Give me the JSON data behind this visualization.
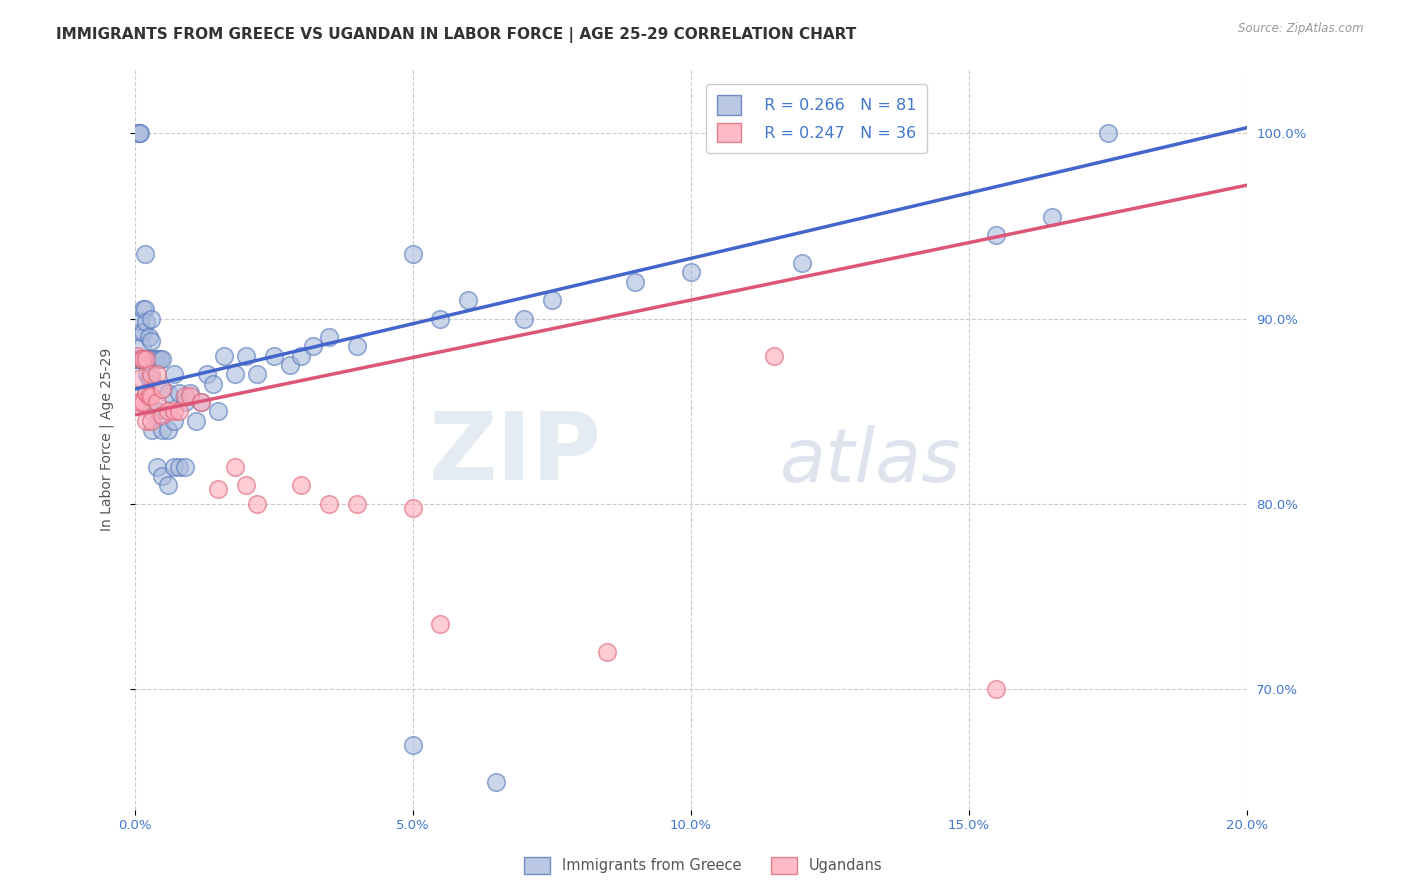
{
  "title": "IMMIGRANTS FROM GREECE VS UGANDAN IN LABOR FORCE | AGE 25-29 CORRELATION CHART",
  "source": "Source: ZipAtlas.com",
  "ylabel": "In Labor Force | Age 25-29",
  "xlim": [
    0.0,
    0.2
  ],
  "ylim": [
    0.635,
    1.035
  ],
  "xticks": [
    0.0,
    0.05,
    0.1,
    0.15,
    0.2
  ],
  "xticklabels": [
    "0.0%",
    "5.0%",
    "10.0%",
    "15.0%",
    "20.0%"
  ],
  "yticks": [
    0.7,
    0.8,
    0.9,
    1.0
  ],
  "yticklabels": [
    "70.0%",
    "80.0%",
    "90.0%",
    "100.0%"
  ],
  "blue_fill": "#aabbdd",
  "pink_fill": "#ffaabb",
  "blue_edge": "#5577bb",
  "pink_edge": "#dd6677",
  "blue_line": "#4466cc",
  "pink_line": "#dd5577",
  "R_blue": 0.266,
  "N_blue": 81,
  "R_pink": 0.247,
  "N_pink": 36,
  "legend_labels": [
    "Immigrants from Greece",
    "Ugandans"
  ],
  "watermark_zip": "ZIP",
  "watermark_atlas": "atlas",
  "background_color": "#ffffff",
  "title_fontsize": 11,
  "axis_label_fontsize": 10,
  "tick_fontsize": 9.5,
  "blue_line_y0": 0.862,
  "blue_line_y1": 1.003,
  "pink_line_y0": 0.848,
  "pink_line_y1": 0.972,
  "blue_scatter_x": [
    0.0003,
    0.0005,
    0.0007,
    0.0008,
    0.0009,
    0.001,
    0.001,
    0.001,
    0.0012,
    0.0013,
    0.0014,
    0.0015,
    0.0015,
    0.0015,
    0.0016,
    0.0017,
    0.0018,
    0.0018,
    0.002,
    0.002,
    0.002,
    0.002,
    0.0022,
    0.0023,
    0.0024,
    0.0025,
    0.0025,
    0.003,
    0.003,
    0.003,
    0.003,
    0.003,
    0.0032,
    0.0035,
    0.004,
    0.004,
    0.004,
    0.0045,
    0.005,
    0.005,
    0.005,
    0.005,
    0.006,
    0.006,
    0.006,
    0.007,
    0.007,
    0.007,
    0.008,
    0.008,
    0.009,
    0.009,
    0.01,
    0.011,
    0.012,
    0.013,
    0.014,
    0.015,
    0.016,
    0.018,
    0.02,
    0.022,
    0.025,
    0.028,
    0.03,
    0.032,
    0.035,
    0.04,
    0.05,
    0.05,
    0.055,
    0.06,
    0.065,
    0.07,
    0.075,
    0.09,
    0.1,
    0.12,
    0.155,
    0.165,
    0.175
  ],
  "blue_scatter_y": [
    0.878,
    0.878,
    1.0,
    1.0,
    1.0,
    0.878,
    0.893,
    0.899,
    0.878,
    0.878,
    0.885,
    0.878,
    0.893,
    0.905,
    0.878,
    0.878,
    0.905,
    0.935,
    0.86,
    0.878,
    0.878,
    0.898,
    0.878,
    0.87,
    0.878,
    0.868,
    0.89,
    0.85,
    0.868,
    0.878,
    0.888,
    0.9,
    0.84,
    0.878,
    0.82,
    0.85,
    0.878,
    0.878,
    0.815,
    0.84,
    0.862,
    0.878,
    0.81,
    0.84,
    0.86,
    0.82,
    0.845,
    0.87,
    0.82,
    0.86,
    0.82,
    0.855,
    0.86,
    0.845,
    0.855,
    0.87,
    0.865,
    0.85,
    0.88,
    0.87,
    0.88,
    0.87,
    0.88,
    0.875,
    0.88,
    0.885,
    0.89,
    0.885,
    0.67,
    0.935,
    0.9,
    0.91,
    0.65,
    0.9,
    0.91,
    0.92,
    0.925,
    0.93,
    0.945,
    0.955,
    1.0
  ],
  "pink_scatter_x": [
    0.0003,
    0.0005,
    0.001,
    0.001,
    0.0012,
    0.0015,
    0.0015,
    0.002,
    0.002,
    0.002,
    0.0025,
    0.003,
    0.003,
    0.003,
    0.004,
    0.004,
    0.005,
    0.005,
    0.006,
    0.007,
    0.008,
    0.009,
    0.01,
    0.012,
    0.015,
    0.018,
    0.02,
    0.022,
    0.03,
    0.035,
    0.04,
    0.05,
    0.055,
    0.085,
    0.115,
    0.155
  ],
  "pink_scatter_y": [
    0.855,
    0.88,
    0.868,
    0.855,
    0.878,
    0.855,
    0.878,
    0.845,
    0.86,
    0.878,
    0.858,
    0.845,
    0.858,
    0.87,
    0.855,
    0.87,
    0.848,
    0.862,
    0.85,
    0.85,
    0.85,
    0.858,
    0.858,
    0.855,
    0.808,
    0.82,
    0.81,
    0.8,
    0.81,
    0.8,
    0.8,
    0.798,
    0.735,
    0.72,
    0.88,
    0.7
  ]
}
